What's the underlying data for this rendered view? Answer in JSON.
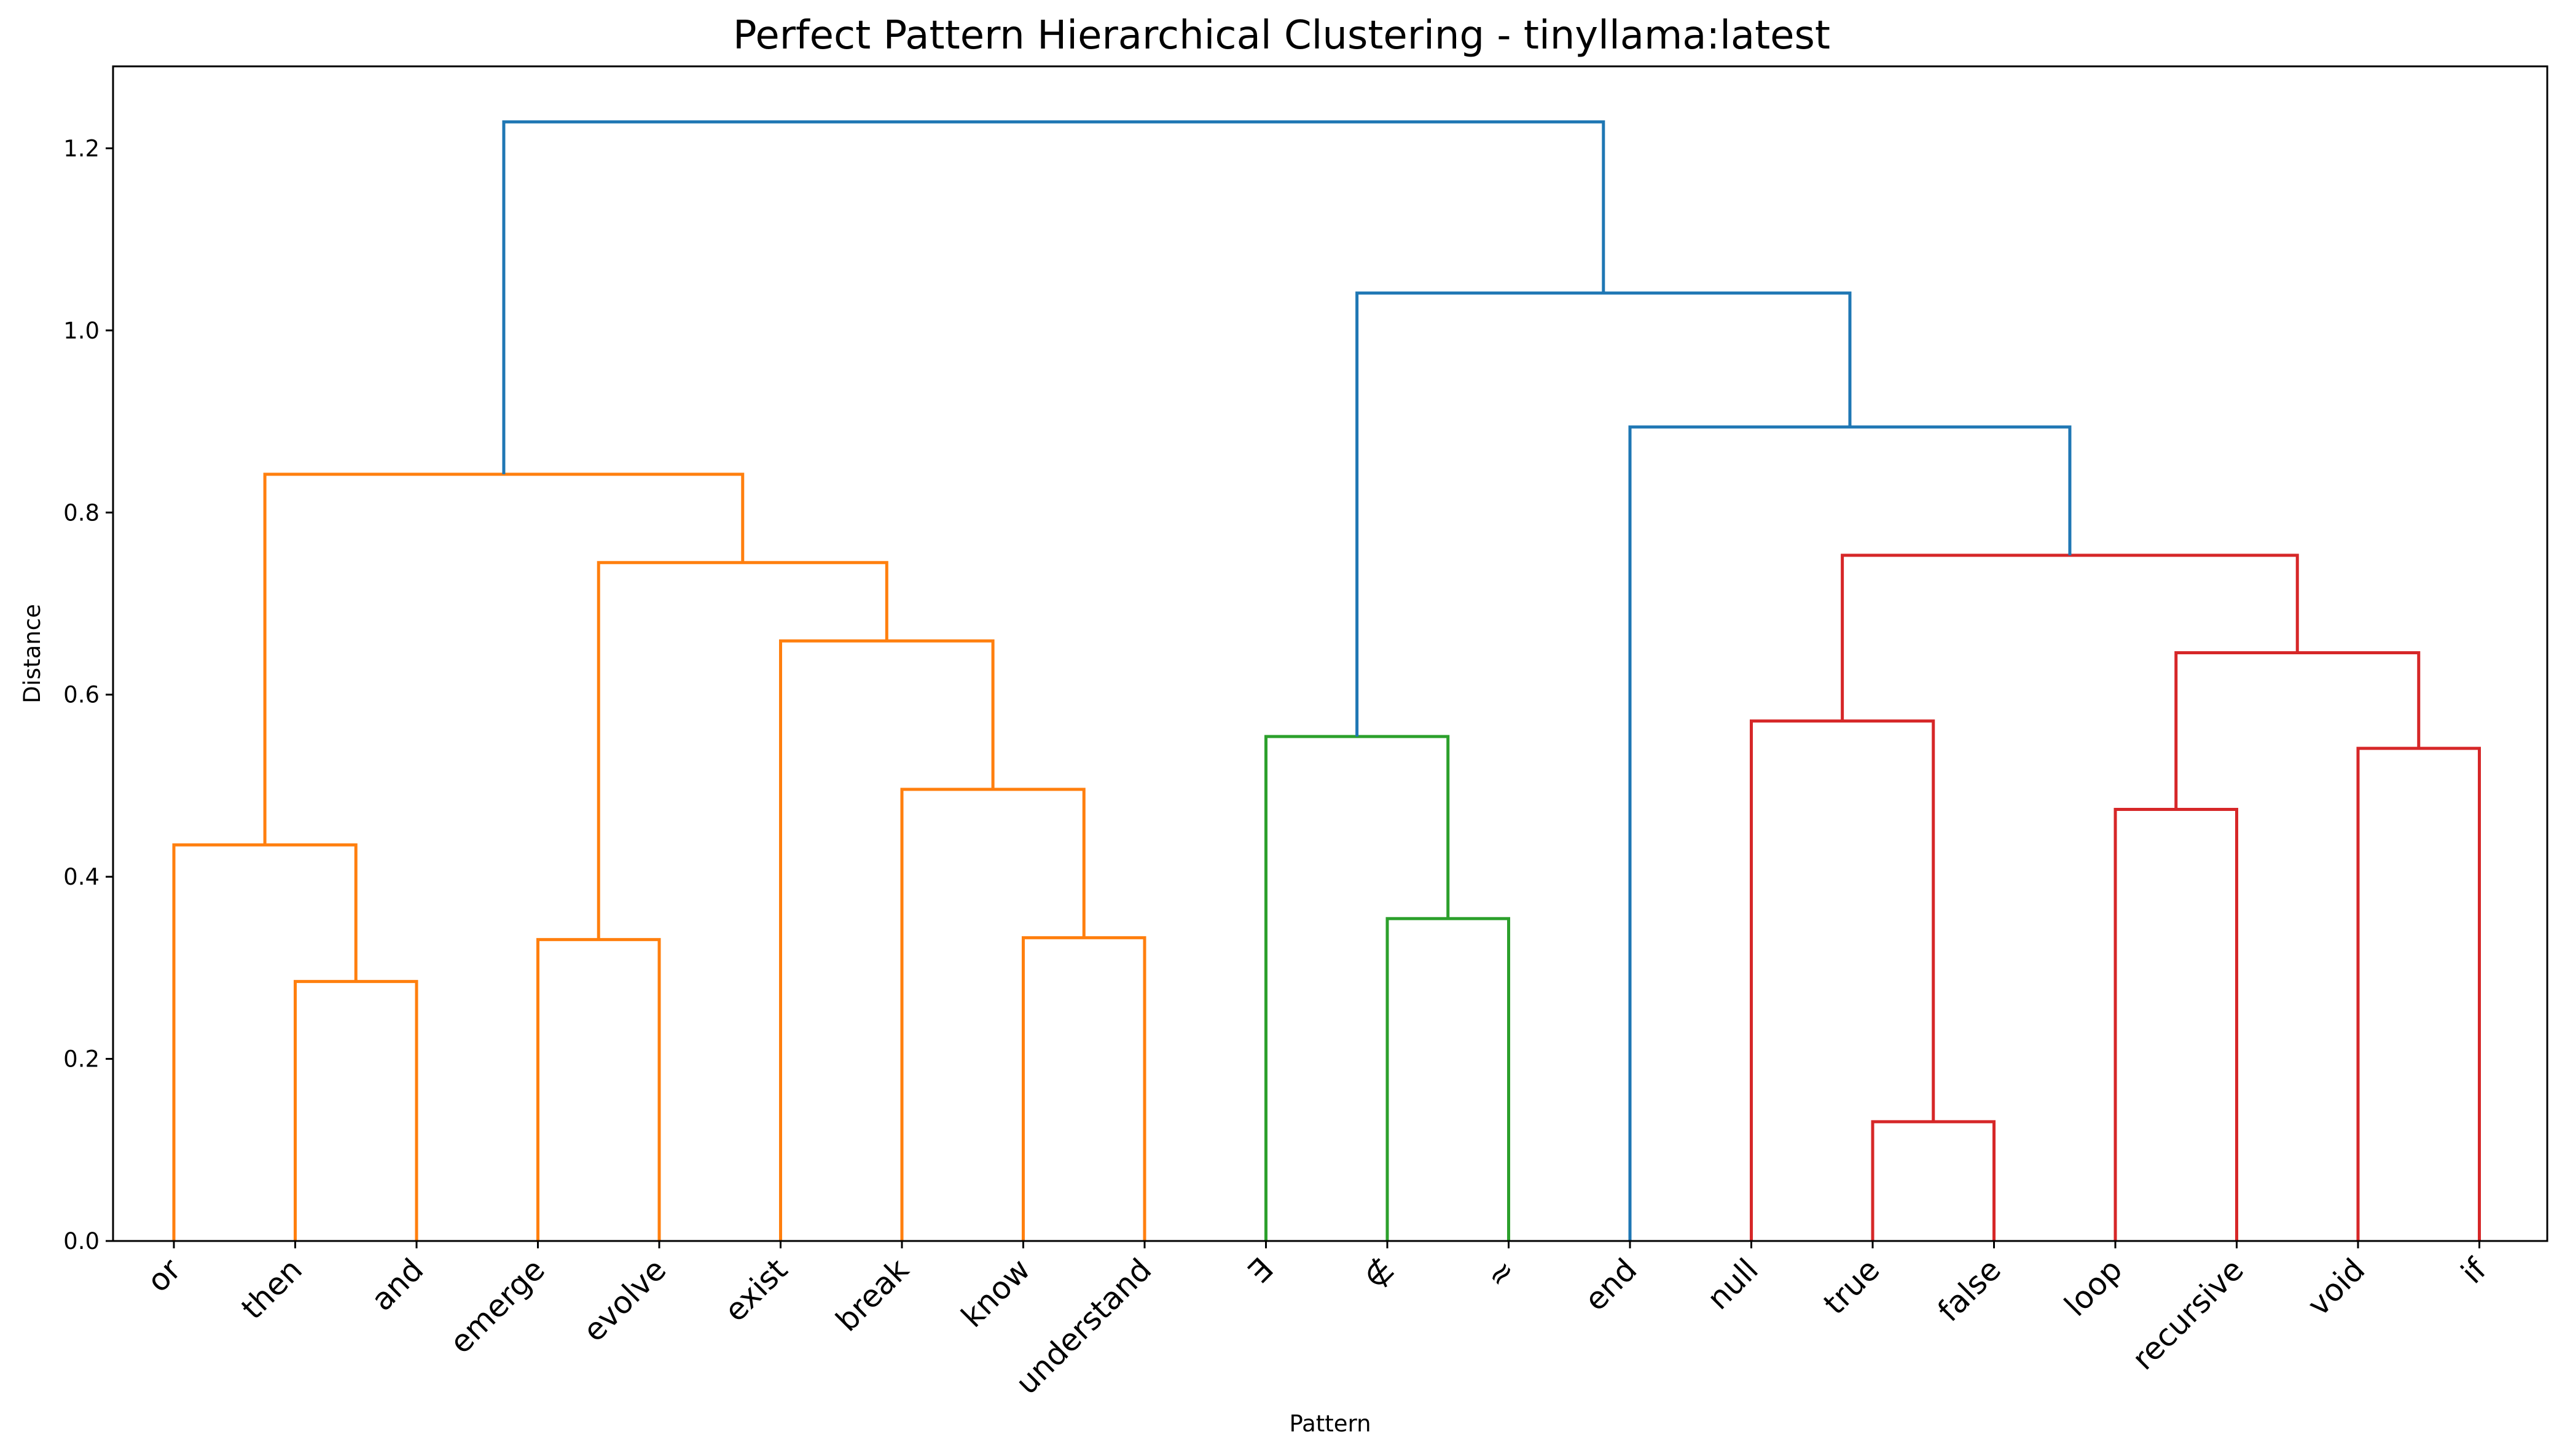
{
  "chart_data": {
    "type": "dendrogram",
    "title": "Perfect Pattern Hierarchical Clustering - tinyllama:latest",
    "xlabel": "Pattern",
    "ylabel": "Distance",
    "ylim": [
      0,
      1.29
    ],
    "yticks": [
      "0.0",
      "0.2",
      "0.4",
      "0.6",
      "0.8",
      "1.0",
      "1.2"
    ],
    "leaves": [
      "or",
      "then",
      "and",
      "emerge",
      "evolve",
      "exist",
      "break",
      "know",
      "understand",
      "∃",
      "∉",
      "≈",
      "end",
      "null",
      "true",
      "false",
      "loop",
      "recursive",
      "void",
      "if"
    ],
    "colors": {
      "orange": "#ff7f0e",
      "green": "#2ca02c",
      "red": "#d62728",
      "blue": "#1f77b4"
    },
    "merges": [
      {
        "left": "L1",
        "right": "L2",
        "height": 0.285,
        "color": "orange"
      },
      {
        "left": "L0",
        "right": "M0",
        "height": 0.435,
        "color": "orange"
      },
      {
        "left": "L3",
        "right": "L4",
        "height": 0.331,
        "color": "orange"
      },
      {
        "left": "L7",
        "right": "L8",
        "height": 0.333,
        "color": "orange"
      },
      {
        "left": "L6",
        "right": "M3",
        "height": 0.496,
        "color": "orange"
      },
      {
        "left": "L5",
        "right": "M4",
        "height": 0.659,
        "color": "orange"
      },
      {
        "left": "M2",
        "right": "M5",
        "height": 0.745,
        "color": "orange"
      },
      {
        "left": "M1",
        "right": "M6",
        "height": 0.842,
        "color": "orange"
      },
      {
        "left": "L10",
        "right": "L11",
        "height": 0.354,
        "color": "green"
      },
      {
        "left": "L9",
        "right": "M8",
        "height": 0.554,
        "color": "green"
      },
      {
        "left": "L14",
        "right": "L15",
        "height": 0.131,
        "color": "red"
      },
      {
        "left": "L13",
        "right": "M10",
        "height": 0.571,
        "color": "red"
      },
      {
        "left": "L16",
        "right": "L17",
        "height": 0.474,
        "color": "red"
      },
      {
        "left": "L18",
        "right": "L19",
        "height": 0.541,
        "color": "red"
      },
      {
        "left": "M12",
        "right": "M13",
        "height": 0.646,
        "color": "red"
      },
      {
        "left": "M11",
        "right": "M14",
        "height": 0.753,
        "color": "red"
      },
      {
        "left": "L12",
        "right": "M15",
        "height": 0.894,
        "color": "blue"
      },
      {
        "left": "M9",
        "right": "M16",
        "height": 1.041,
        "color": "blue"
      },
      {
        "left": "M7",
        "right": "M17",
        "height": 1.229,
        "color": "blue"
      }
    ]
  }
}
